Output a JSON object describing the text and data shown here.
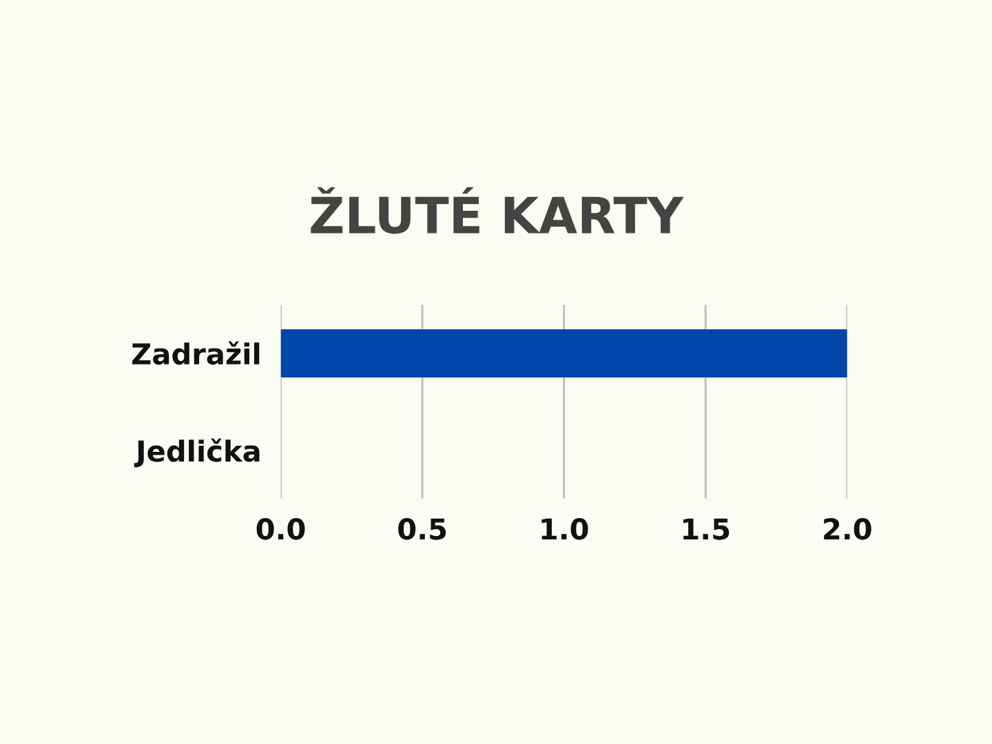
{
  "chart_data": {
    "type": "bar",
    "orientation": "horizontal",
    "title": "ŽLUTÉ KARTY",
    "categories": [
      "Zadražil",
      "Jedlička"
    ],
    "values": [
      2,
      0
    ],
    "color": "#0047ab",
    "xlim": [
      0,
      2
    ],
    "xticks": [
      {
        "value": 0,
        "label": "0.0"
      },
      {
        "value": 0.5,
        "label": "0.5"
      },
      {
        "value": 1,
        "label": "1.0"
      },
      {
        "value": 1.5,
        "label": "1.5"
      },
      {
        "value": 2,
        "label": "2.0"
      }
    ],
    "grid": "x",
    "legend": false
  }
}
